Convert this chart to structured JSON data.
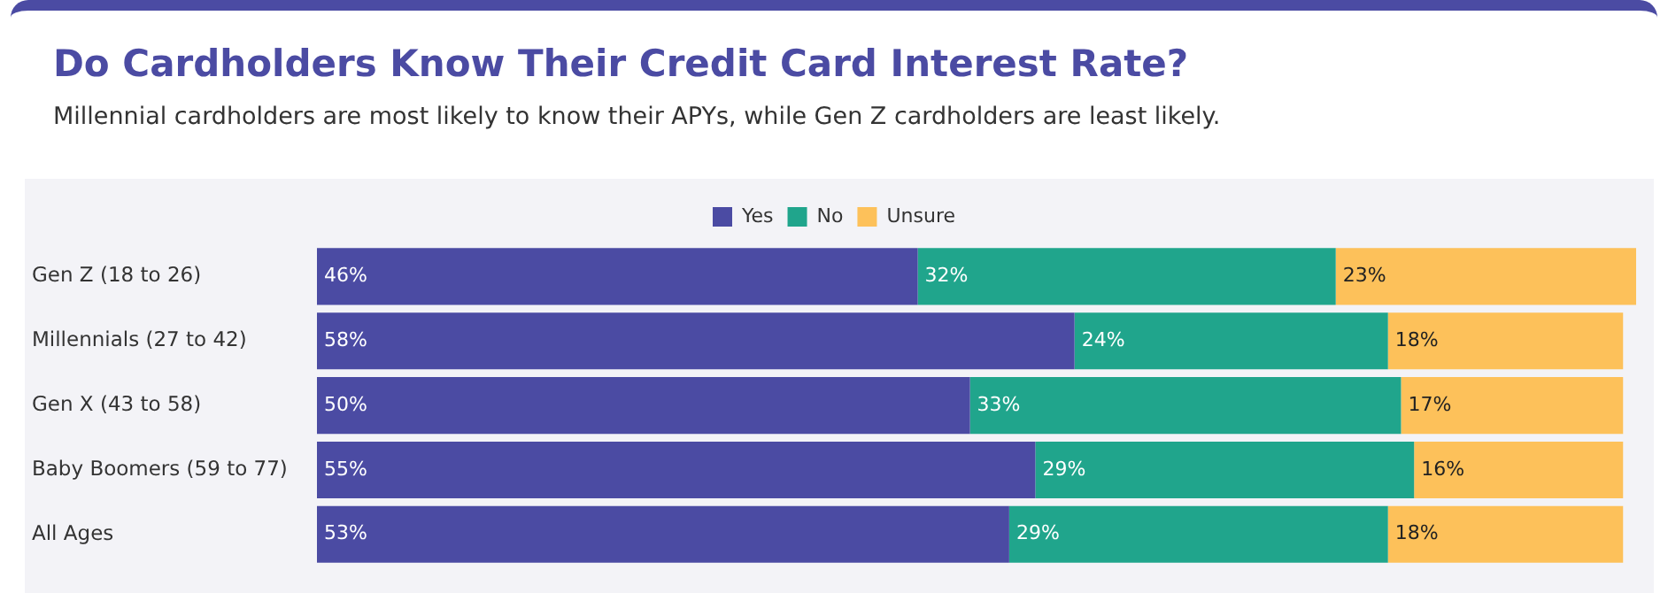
{
  "chart_data": {
    "type": "bar",
    "orientation": "horizontal",
    "stacked": true,
    "title": "Do Cardholders Know Their Credit Card Interest Rate?",
    "subtitle": "Millennial cardholders are most likely to know their APYs, while Gen Z cardholders are least likely.",
    "categories": [
      "Gen Z (18 to 26)",
      "Millennials (27 to 42)",
      "Gen X (43 to 58)",
      "Baby Boomers (59 to 77)",
      "All Ages"
    ],
    "series": [
      {
        "name": "Yes",
        "color": "#4b4ba3",
        "values": [
          46,
          58,
          50,
          55,
          53
        ],
        "value_labels": [
          "46%",
          "58%",
          "50%",
          "55%",
          "53%"
        ]
      },
      {
        "name": "No",
        "color": "#20a58c",
        "values": [
          32,
          24,
          33,
          29,
          29
        ],
        "value_labels": [
          "32%",
          "24%",
          "33%",
          "29%",
          "29%"
        ]
      },
      {
        "name": "Unsure",
        "color": "#fdc15a",
        "values": [
          23,
          18,
          17,
          16,
          18
        ],
        "value_labels": [
          "23%",
          "18%",
          "17%",
          "16%",
          "18%"
        ]
      }
    ],
    "tick_labels": "y",
    "legend": "top"
  }
}
